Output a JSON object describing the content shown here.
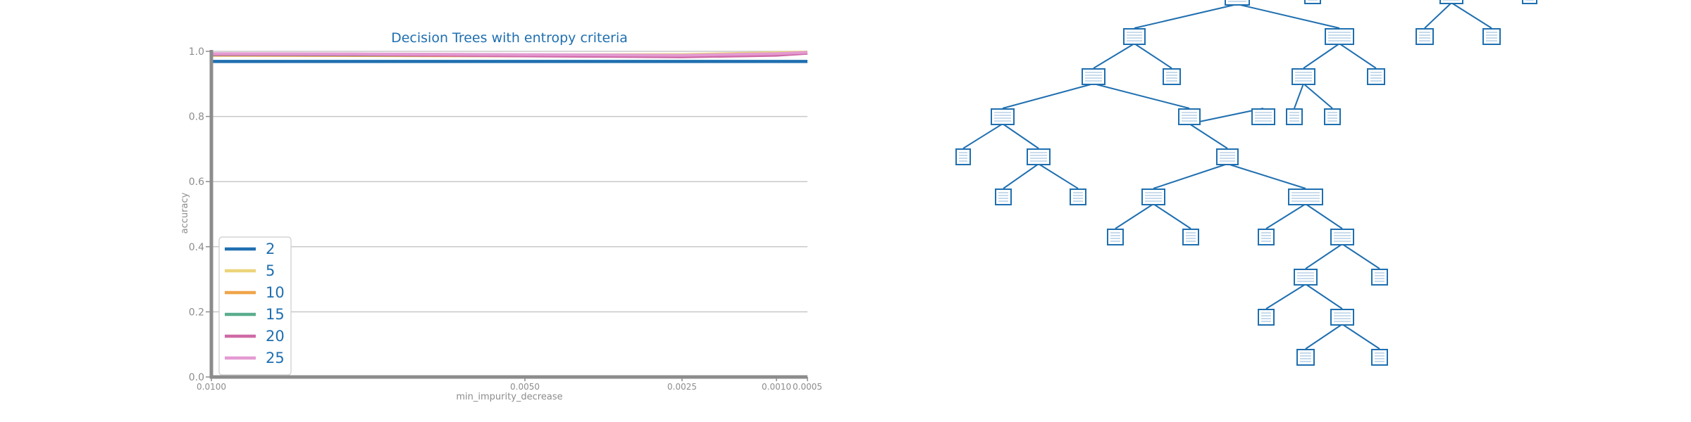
{
  "chart_data": {
    "type": "line",
    "title": "Decision Trees with entropy criteria",
    "xlabel": "min_impurity_decrease",
    "ylabel": "accuracy",
    "x_axis": "reversed",
    "xlim": [
      0.01,
      0.0005
    ],
    "ylim": [
      0.0,
      1.0
    ],
    "x_ticks": [
      0.01,
      0.005,
      0.0025,
      0.001,
      0.0005
    ],
    "x_tick_labels": [
      "0.0100",
      "0.0050",
      "0.0025",
      "0.0010",
      "0.0005"
    ],
    "y_ticks": [
      0.0,
      0.2,
      0.4,
      0.6,
      0.8,
      1.0
    ],
    "y_tick_labels": [
      "0.0",
      "0.2",
      "0.4",
      "0.6",
      "0.8",
      "1.0"
    ],
    "grid": "horizontal",
    "legend_position": "bottom-left",
    "x": [
      0.01,
      0.0075,
      0.005,
      0.0025,
      0.001,
      0.0005
    ],
    "series": [
      {
        "name": "2",
        "color": "#1f6fb0",
        "values": [
          0.969,
          0.969,
          0.969,
          0.969,
          0.969,
          0.969
        ]
      },
      {
        "name": "5",
        "color": "#ecd47a",
        "values": [
          0.991,
          0.99,
          0.989,
          0.99,
          0.996,
          0.998
        ]
      },
      {
        "name": "10",
        "color": "#f0a449",
        "values": [
          0.988,
          0.987,
          0.986,
          0.987,
          0.99,
          0.995
        ]
      },
      {
        "name": "15",
        "color": "#59ad8d",
        "values": [
          0.99,
          0.989,
          0.987,
          0.987,
          0.992,
          0.996
        ]
      },
      {
        "name": "20",
        "color": "#cf6aa6",
        "values": [
          0.991,
          0.99,
          0.986,
          0.983,
          0.988,
          0.994
        ]
      },
      {
        "name": "25",
        "color": "#e49ad1",
        "values": [
          0.993,
          0.992,
          0.99,
          0.988,
          0.993,
          0.997
        ]
      }
    ]
  },
  "tree_diagram": {
    "type": "tree",
    "color": "#1f6fb0"
  }
}
